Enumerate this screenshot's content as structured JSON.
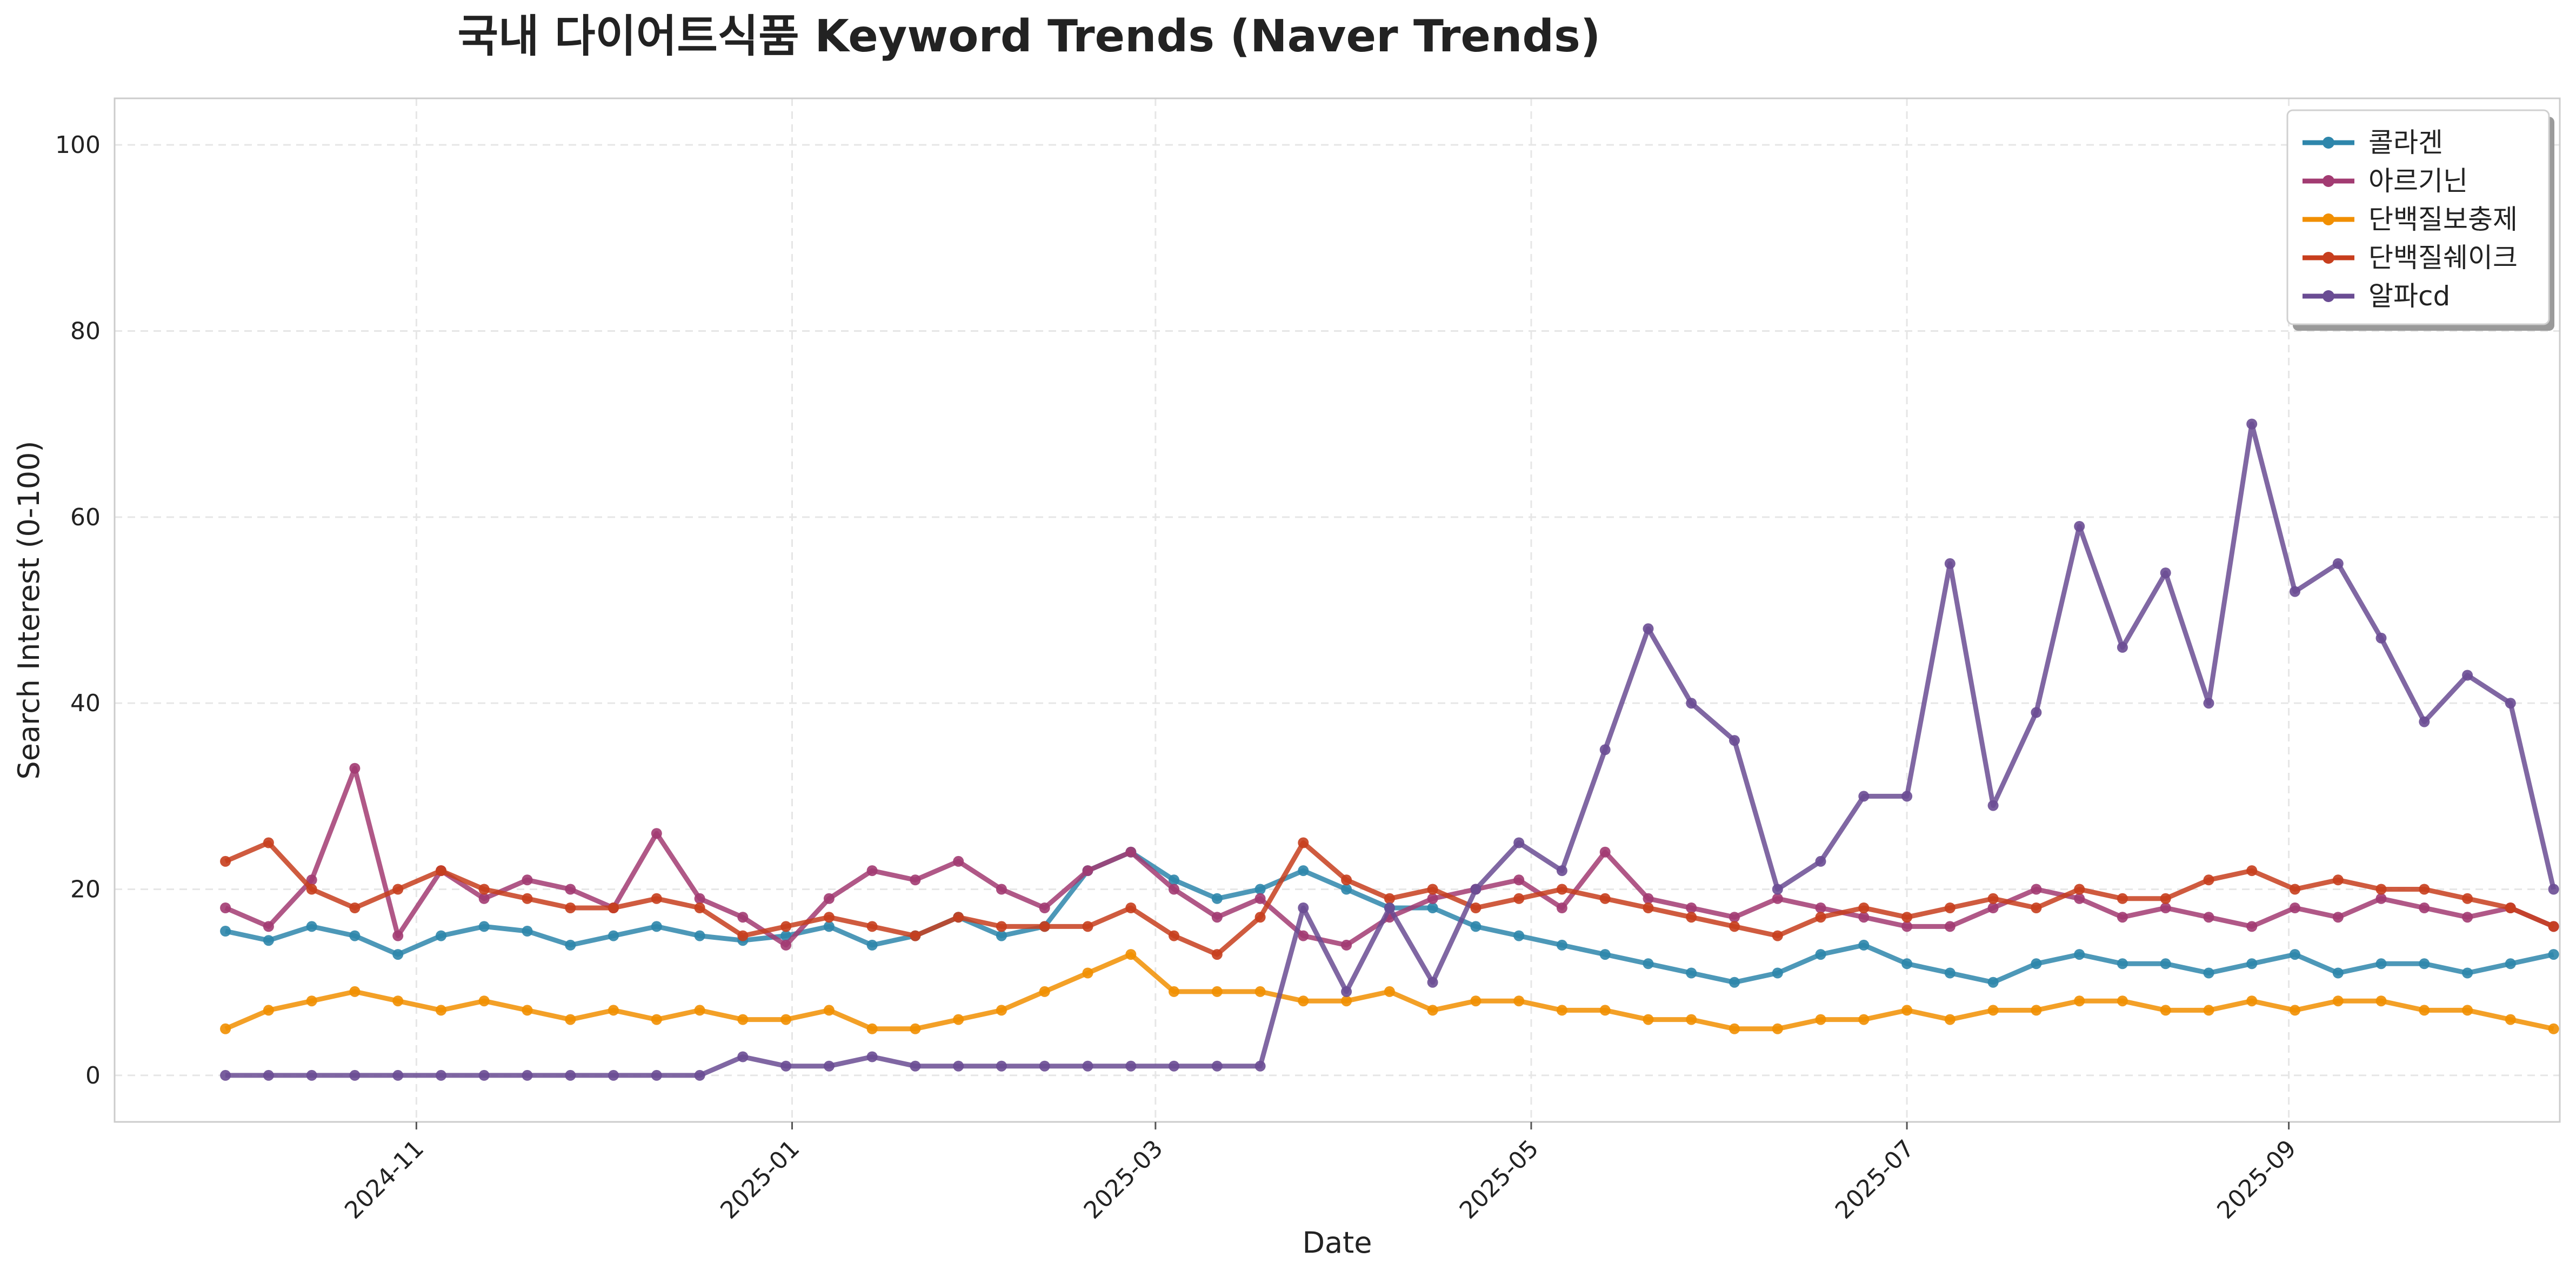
{
  "chart_data": {
    "type": "line",
    "title": "국내 다이어트식품 Keyword Trends (Naver Trends)",
    "xlabel": "Date",
    "ylabel": "Search Interest (0-100)",
    "ylim": [
      -5,
      105
    ],
    "yticks": [
      0,
      20,
      40,
      60,
      80,
      100
    ],
    "xlim": [
      "2024-09-13",
      "2025-10-15"
    ],
    "xticks": [
      "2024-11",
      "2025-01",
      "2025-03",
      "2025-05",
      "2025-07",
      "2025-09"
    ],
    "grid": true,
    "legend_position": "top-right",
    "x_start": "2024-10-01",
    "x_step_days": 7,
    "series": [
      {
        "name": "콜라겐",
        "color": "#2E86AB",
        "values": [
          15.5,
          14.5,
          16,
          15,
          13,
          15,
          16,
          15.5,
          14,
          15,
          16,
          15,
          14.5,
          15,
          16,
          14,
          15,
          17,
          15,
          16,
          22,
          24,
          21,
          19,
          20,
          22,
          20,
          18,
          18,
          16,
          15,
          14,
          13,
          12,
          11,
          10,
          11,
          13,
          14,
          12,
          11,
          10,
          12,
          13,
          12,
          12,
          11,
          12,
          13,
          11,
          12,
          12,
          11,
          12,
          13
        ]
      },
      {
        "name": "아르기닌",
        "color": "#A23B72",
        "values": [
          18,
          16,
          21,
          33,
          15,
          22,
          19,
          21,
          20,
          18,
          26,
          19,
          17,
          14,
          19,
          22,
          21,
          23,
          20,
          18,
          22,
          24,
          20,
          17,
          19,
          15,
          14,
          17,
          19,
          20,
          21,
          18,
          24,
          19,
          18,
          17,
          19,
          18,
          17,
          16,
          16,
          18,
          20,
          19,
          17,
          18,
          17,
          16,
          18,
          17,
          19,
          18,
          17,
          18,
          16
        ]
      },
      {
        "name": "단백질보충제",
        "color": "#F18F01",
        "values": [
          5,
          7,
          8,
          9,
          8,
          7,
          8,
          7,
          6,
          7,
          6,
          7,
          6,
          6,
          7,
          5,
          5,
          6,
          7,
          9,
          11,
          13,
          9,
          9,
          9,
          8,
          8,
          9,
          7,
          8,
          8,
          7,
          7,
          6,
          6,
          5,
          5,
          6,
          6,
          7,
          6,
          7,
          7,
          8,
          8,
          7,
          7,
          8,
          7,
          8,
          8,
          7,
          7,
          6,
          5
        ]
      },
      {
        "name": "단백질쉐이크",
        "color": "#C73E1D",
        "values": [
          23,
          25,
          20,
          18,
          20,
          22,
          20,
          19,
          18,
          18,
          19,
          18,
          15,
          16,
          17,
          16,
          15,
          17,
          16,
          16,
          16,
          18,
          15,
          13,
          17,
          25,
          21,
          19,
          20,
          18,
          19,
          20,
          19,
          18,
          17,
          16,
          15,
          17,
          18,
          17,
          18,
          19,
          18,
          20,
          19,
          19,
          21,
          22,
          20,
          21,
          20,
          20,
          19,
          18,
          16
        ]
      },
      {
        "name": "알파cd",
        "color": "#6A4C93",
        "values": [
          0,
          0,
          0,
          0,
          0,
          0,
          0,
          0,
          0,
          0,
          0,
          0,
          2,
          1,
          1,
          2,
          1,
          1,
          1,
          1,
          1,
          1,
          1,
          1,
          1,
          18,
          9,
          18,
          10,
          20,
          25,
          22,
          35,
          48,
          40,
          36,
          20,
          23,
          30,
          30,
          55,
          29,
          39,
          59,
          46,
          54,
          40,
          70,
          52,
          55,
          47,
          38,
          43,
          40,
          20
        ]
      }
    ]
  }
}
